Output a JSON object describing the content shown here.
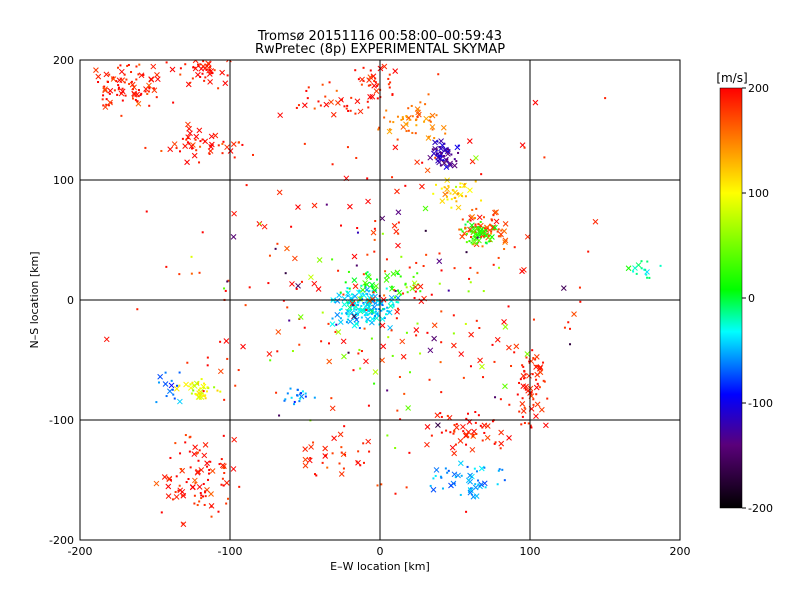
{
  "chart_data": {
    "type": "scatter",
    "title": "Tromsø 20151116 00:58:00–00:59:43",
    "subtitle": "RwPretec (8p) EXPERIMENTAL SKYMAP",
    "xlabel": "E–W location [km]",
    "ylabel": "N–S location [km]",
    "xlim": [
      -200,
      200
    ],
    "ylim": [
      -200,
      200
    ],
    "xticks": [
      -200,
      -100,
      0,
      100,
      200
    ],
    "yticks": [
      -200,
      -100,
      0,
      100,
      200
    ],
    "grid": true,
    "markers": [
      "dot",
      "x"
    ],
    "colorbar": {
      "label": "[m/s]",
      "range": [
        -200,
        200
      ],
      "ticks": [
        200,
        100,
        0,
        -100,
        -200
      ],
      "colormap": [
        "#000000",
        "#5a007a",
        "#0000ff",
        "#00ffff",
        "#00ff00",
        "#ffff00",
        "#ff0000"
      ]
    },
    "clusters": [
      {
        "x": -170,
        "y": 180,
        "spread_x": 30,
        "spread_y": 20,
        "value": 190,
        "count": 90
      },
      {
        "x": -115,
        "y": 190,
        "spread_x": 15,
        "spread_y": 12,
        "value": 190,
        "count": 40
      },
      {
        "x": -120,
        "y": 130,
        "spread_x": 30,
        "spread_y": 15,
        "value": 190,
        "count": 50
      },
      {
        "x": -30,
        "y": 165,
        "spread_x": 30,
        "spread_y": 15,
        "value": 190,
        "count": 30
      },
      {
        "x": -5,
        "y": 180,
        "spread_x": 15,
        "spread_y": 15,
        "value": 190,
        "count": 35
      },
      {
        "x": 20,
        "y": 150,
        "spread_x": 20,
        "spread_y": 20,
        "value": 150,
        "count": 50
      },
      {
        "x": 42,
        "y": 120,
        "spread_x": 12,
        "spread_y": 12,
        "value": -120,
        "count": 55
      },
      {
        "x": 50,
        "y": 90,
        "spread_x": 15,
        "spread_y": 15,
        "value": 120,
        "count": 35
      },
      {
        "x": 70,
        "y": 60,
        "spread_x": 15,
        "spread_y": 15,
        "value": 170,
        "count": 75
      },
      {
        "x": 65,
        "y": 55,
        "spread_x": 10,
        "spread_y": 10,
        "value": 20,
        "count": 45
      },
      {
        "x": -10,
        "y": -5,
        "spread_x": 20,
        "spread_y": 15,
        "value": -40,
        "count": 170
      },
      {
        "x": 5,
        "y": 15,
        "spread_x": 30,
        "spread_y": 12,
        "value": 20,
        "count": 40
      },
      {
        "x": -120,
        "y": -75,
        "spread_x": 12,
        "spread_y": 10,
        "value": 90,
        "count": 40
      },
      {
        "x": -140,
        "y": -75,
        "spread_x": 12,
        "spread_y": 12,
        "value": -70,
        "count": 15
      },
      {
        "x": -120,
        "y": -150,
        "spread_x": 25,
        "spread_y": 35,
        "value": 190,
        "count": 90
      },
      {
        "x": 100,
        "y": -70,
        "spread_x": 12,
        "spread_y": 35,
        "value": 190,
        "count": 60
      },
      {
        "x": 60,
        "y": -110,
        "spread_x": 30,
        "spread_y": 20,
        "value": 190,
        "count": 50
      },
      {
        "x": 60,
        "y": -150,
        "spread_x": 30,
        "spread_y": 15,
        "value": -55,
        "count": 50
      },
      {
        "x": -55,
        "y": -80,
        "spread_x": 10,
        "spread_y": 8,
        "value": -60,
        "count": 20
      },
      {
        "x": -30,
        "y": -130,
        "spread_x": 25,
        "spread_y": 15,
        "value": 190,
        "count": 30
      },
      {
        "x": 175,
        "y": 25,
        "spread_x": 12,
        "spread_y": 8,
        "value": -20,
        "count": 15
      },
      {
        "x": 0,
        "y": 0,
        "spread_x": 150,
        "spread_y": 150,
        "value": 190,
        "count": 220
      },
      {
        "x": 0,
        "y": 0,
        "spread_x": 120,
        "spread_y": 120,
        "value": -150,
        "count": 30
      },
      {
        "x": 0,
        "y": 0,
        "spread_x": 130,
        "spread_y": 130,
        "value": 60,
        "count": 50
      }
    ]
  }
}
